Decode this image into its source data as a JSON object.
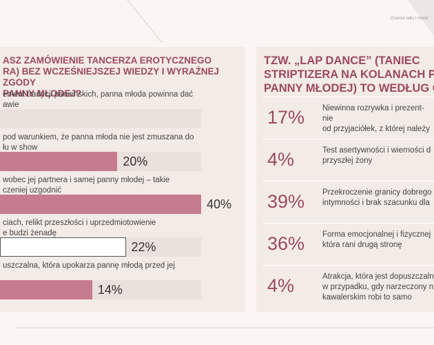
{
  "header": "Granice tabu i moral",
  "chart_data": [
    {
      "type": "bar",
      "orientation": "horizontal",
      "title": "ASZ ZAMÓWIENIE TANCERZA EROTYCZNEGO\nRA) BEZ WCZEŚNIEJSZEJ WIEDZY I WYRAŹNEJ ZGODY\nPANNY MŁODEJ?",
      "categories": [
        "ement tradycji panieńskich, panna młoda powinna dać\nawie",
        "pod warunkiem, że panna młoda nie jest zmuszana do\nłu w show",
        "wobec jej partnera i samej panny młodej – takie\nczeniej uzgodnić",
        "ciach, relikt przeszłości i uprzedmiotowienie\ne budzi żenadę",
        "uszczalna, która upokarza pannę młodą przed jej"
      ],
      "values": [
        null,
        20,
        40,
        22,
        14
      ],
      "value_labels": [
        null,
        "20%",
        "40%",
        "22%",
        "14%"
      ],
      "colors": [
        "#c77b8e",
        "#c77b8e",
        "#c77b8e",
        "#ffffff",
        "#c77b8e"
      ],
      "edgecolor": "#555555",
      "xlim": [
        -8,
        40
      ]
    },
    {
      "type": "stat-list",
      "title": "TZW. „LAP DANCE” (TANIEC\nSTRIPTIZERA NA KOLANACH PRZ\nPANNY MŁODEJ) TO WEDŁUG CIE",
      "categories": [
        "Niewinna rozrywka i prezent-nie\nod przyjaciółek, z której należy",
        "Test asertywności i wierności d\nprzyszłej żony",
        "Przekroczenie granicy dobrego\nintymności i brak szacunku dla",
        "Forma emocjonalnej i fizycznej\nktóra rani drugą stronę",
        "Atrakcja, która jest dopuszczaln\nw przypadku, gdy narzeczony n\nkawalerskim robi to samo"
      ],
      "values": [
        17,
        4,
        39,
        36,
        4
      ],
      "value_labels": [
        "17%",
        "4%",
        "39%",
        "36%",
        "4%"
      ],
      "color": "#9b4a5f"
    }
  ]
}
